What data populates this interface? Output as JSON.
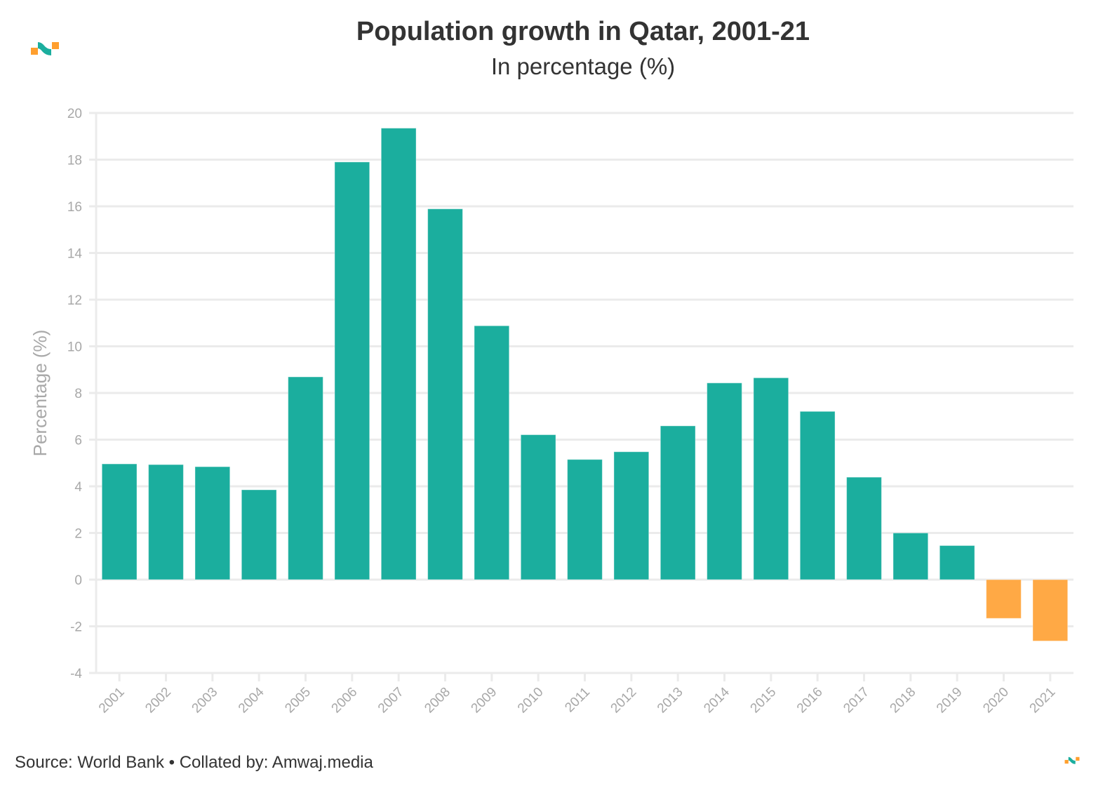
{
  "header": {
    "title": "Population growth in Qatar, 2001-21",
    "subtitle": "In percentage (%)"
  },
  "footer": {
    "source": "Source: World Bank • Collated by: Amwaj.media"
  },
  "logo": {
    "name": "amwaj-logo-icon",
    "colors": {
      "orange": "#FF9F2E",
      "teal": "#1BAE9E"
    }
  },
  "colors": {
    "positive": "#1BAE9E",
    "negative": "#FFA945",
    "grid": "#ebebeb",
    "tick_text": "#a8a8a8"
  },
  "chart_data": {
    "type": "bar",
    "title": "Population growth in Qatar, 2001-21",
    "subtitle": "In percentage (%)",
    "xlabel": "",
    "ylabel": "Percentage (%)",
    "ylim": [
      -4,
      20
    ],
    "yticks": [
      -4,
      -2,
      0,
      2,
      4,
      6,
      8,
      10,
      12,
      14,
      16,
      18,
      20
    ],
    "grid": true,
    "legend": "none",
    "categories": [
      "2001",
      "2002",
      "2003",
      "2004",
      "2005",
      "2006",
      "2007",
      "2008",
      "2009",
      "2010",
      "2011",
      "2012",
      "2013",
      "2014",
      "2015",
      "2016",
      "2017",
      "2018",
      "2019",
      "2020",
      "2021"
    ],
    "values": [
      4.96,
      4.93,
      4.84,
      3.85,
      8.69,
      17.9,
      19.35,
      15.89,
      10.88,
      6.21,
      5.15,
      5.48,
      6.59,
      8.43,
      8.65,
      7.21,
      4.39,
      2.0,
      1.46,
      -1.66,
      -2.63
    ],
    "xtick_rotation_deg": -45,
    "source": "Source: World Bank • Collated by: Amwaj.media"
  }
}
